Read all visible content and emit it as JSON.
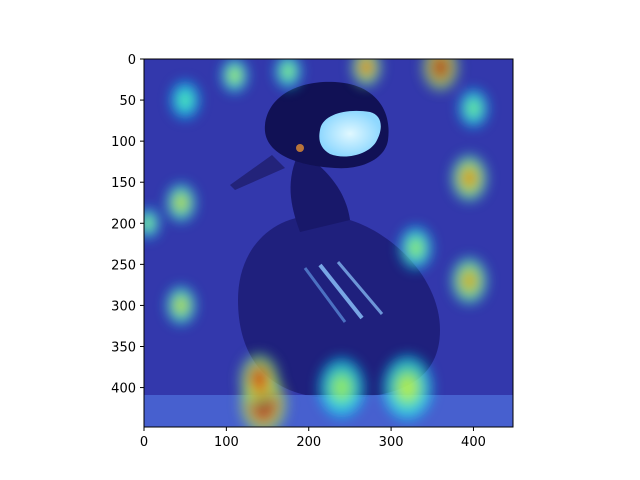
{
  "chart_data": {
    "type": "heatmap",
    "title": "",
    "xlabel": "",
    "ylabel": "",
    "xlim": [
      0,
      448
    ],
    "ylim": [
      448,
      0
    ],
    "x_ticks": [
      0,
      100,
      200,
      300,
      400
    ],
    "y_ticks": [
      0,
      50,
      100,
      150,
      200,
      250,
      300,
      350,
      400
    ],
    "x_tick_labels": [
      "0",
      "100",
      "200",
      "300",
      "400"
    ],
    "y_tick_labels": [
      "0",
      "50",
      "100",
      "150",
      "200",
      "250",
      "300",
      "350",
      "400"
    ],
    "colormap": "jet",
    "grid": false,
    "background_image": "hooded-merganser-duck-photo",
    "hotspots": [
      {
        "x": 145,
        "y": 420,
        "intensity": 1.0,
        "spread": 28
      },
      {
        "x": 140,
        "y": 390,
        "intensity": 0.85,
        "spread": 24
      },
      {
        "x": 360,
        "y": 10,
        "intensity": 0.9,
        "spread": 22
      },
      {
        "x": 270,
        "y": 10,
        "intensity": 0.75,
        "spread": 18
      },
      {
        "x": 395,
        "y": 145,
        "intensity": 0.7,
        "spread": 22
      },
      {
        "x": 395,
        "y": 270,
        "intensity": 0.65,
        "spread": 22
      },
      {
        "x": 45,
        "y": 175,
        "intensity": 0.55,
        "spread": 18
      },
      {
        "x": 45,
        "y": 300,
        "intensity": 0.55,
        "spread": 18
      },
      {
        "x": 110,
        "y": 20,
        "intensity": 0.5,
        "spread": 16
      },
      {
        "x": 175,
        "y": 15,
        "intensity": 0.45,
        "spread": 16
      },
      {
        "x": 320,
        "y": 400,
        "intensity": 0.5,
        "spread": 30
      },
      {
        "x": 240,
        "y": 400,
        "intensity": 0.45,
        "spread": 28
      },
      {
        "x": 50,
        "y": 50,
        "intensity": 0.35,
        "spread": 18
      },
      {
        "x": 400,
        "y": 60,
        "intensity": 0.4,
        "spread": 18
      },
      {
        "x": 5,
        "y": 200,
        "intensity": 0.45,
        "spread": 14
      },
      {
        "x": 330,
        "y": 230,
        "intensity": 0.45,
        "spread": 20
      }
    ]
  }
}
